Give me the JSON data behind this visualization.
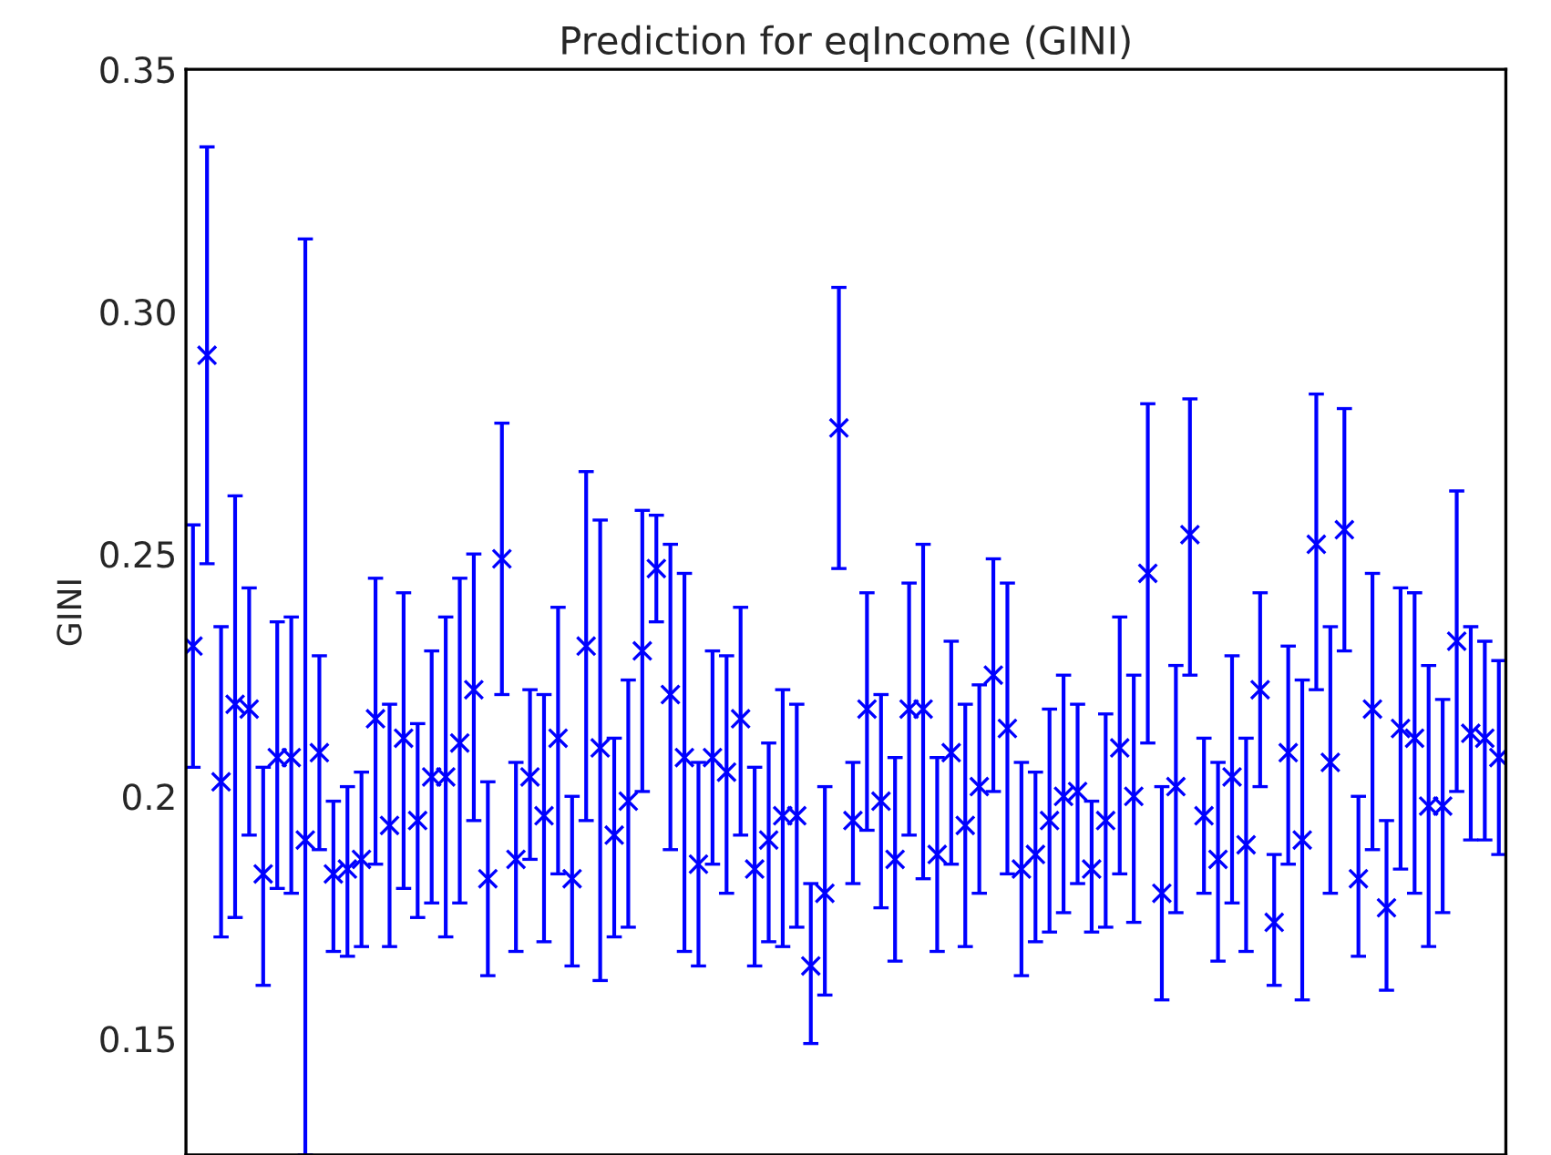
{
  "chart_data": {
    "type": "scatter",
    "title": "Prediction for eqIncome (GINI)",
    "ylabel": "GINI",
    "categories": [
      null,
      null,
      null,
      null,
      null,
      null,
      null,
      null,
      null,
      null,
      null,
      null,
      null,
      null,
      null,
      null,
      null,
      null,
      null,
      null,
      null,
      null,
      null,
      null,
      null,
      null,
      null,
      null,
      null,
      null,
      null,
      null,
      null,
      null,
      null,
      null,
      null,
      null,
      null,
      null,
      null,
      null,
      null,
      null,
      null,
      null,
      null,
      null,
      null,
      null,
      null,
      null,
      null,
      null,
      null,
      null,
      null,
      null,
      null,
      null,
      null,
      null,
      null,
      null,
      null,
      null,
      null,
      null,
      null,
      null,
      null,
      null,
      null,
      null,
      null,
      null,
      null,
      null,
      null,
      null,
      null,
      null,
      null,
      null,
      null,
      null,
      null,
      null,
      null,
      null,
      null,
      null,
      null,
      null
    ],
    "values": [
      0.231,
      0.291,
      0.203,
      0.219,
      0.218,
      0.184,
      0.208,
      0.208,
      0.191,
      0.209,
      0.184,
      0.185,
      0.187,
      0.216,
      0.194,
      0.212,
      0.195,
      0.204,
      0.204,
      0.211,
      0.222,
      0.183,
      0.249,
      0.187,
      0.204,
      0.196,
      0.212,
      0.183,
      0.231,
      0.21,
      0.192,
      0.199,
      0.23,
      0.247,
      0.221,
      0.208,
      0.186,
      0.208,
      0.205,
      0.216,
      0.185,
      0.191,
      0.196,
      0.196,
      0.165,
      0.18,
      0.276,
      0.195,
      0.218,
      0.199,
      0.187,
      0.218,
      0.218,
      0.188,
      0.209,
      0.194,
      0.202,
      0.225,
      0.214,
      0.185,
      0.188,
      0.195,
      0.2,
      0.201,
      0.185,
      0.195,
      0.21,
      0.2,
      0.246,
      0.18,
      0.202,
      0.254,
      0.196,
      0.187,
      0.204,
      0.19,
      0.222,
      0.174,
      0.209,
      0.191,
      0.252,
      0.207,
      0.255,
      0.183,
      0.218,
      0.177,
      0.214,
      0.212,
      0.198,
      0.198,
      0.232,
      0.213,
      0.212,
      0.208
    ],
    "errors": [
      [
        0.206,
        0.256
      ],
      [
        0.248,
        0.334
      ],
      [
        0.171,
        0.235
      ],
      [
        0.175,
        0.262
      ],
      [
        0.192,
        0.243
      ],
      [
        0.161,
        0.206
      ],
      [
        0.181,
        0.236
      ],
      [
        0.18,
        0.237
      ],
      [
        0.126,
        0.315
      ],
      [
        0.189,
        0.229
      ],
      [
        0.168,
        0.199
      ],
      [
        0.167,
        0.202
      ],
      [
        0.169,
        0.205
      ],
      [
        0.186,
        0.245
      ],
      [
        0.169,
        0.219
      ],
      [
        0.181,
        0.242
      ],
      [
        0.175,
        0.215
      ],
      [
        0.178,
        0.23
      ],
      [
        0.171,
        0.237
      ],
      [
        0.178,
        0.245
      ],
      [
        0.195,
        0.25
      ],
      [
        0.163,
        0.203
      ],
      [
        0.221,
        0.277
      ],
      [
        0.168,
        0.207
      ],
      [
        0.187,
        0.222
      ],
      [
        0.17,
        0.221
      ],
      [
        0.184,
        0.239
      ],
      [
        0.165,
        0.2
      ],
      [
        0.195,
        0.267
      ],
      [
        0.162,
        0.257
      ],
      [
        0.171,
        0.212
      ],
      [
        0.173,
        0.224
      ],
      [
        0.201,
        0.259
      ],
      [
        0.236,
        0.258
      ],
      [
        0.189,
        0.252
      ],
      [
        0.168,
        0.246
      ],
      [
        0.165,
        0.207
      ],
      [
        0.186,
        0.23
      ],
      [
        0.18,
        0.229
      ],
      [
        0.192,
        0.239
      ],
      [
        0.165,
        0.206
      ],
      [
        0.17,
        0.211
      ],
      [
        0.169,
        0.222
      ],
      [
        0.173,
        0.219
      ],
      [
        0.149,
        0.182
      ],
      [
        0.159,
        0.202
      ],
      [
        0.247,
        0.305
      ],
      [
        0.182,
        0.207
      ],
      [
        0.193,
        0.242
      ],
      [
        0.177,
        0.221
      ],
      [
        0.166,
        0.208
      ],
      [
        0.192,
        0.244
      ],
      [
        0.183,
        0.252
      ],
      [
        0.168,
        0.208
      ],
      [
        0.186,
        0.232
      ],
      [
        0.169,
        0.219
      ],
      [
        0.18,
        0.223
      ],
      [
        0.201,
        0.249
      ],
      [
        0.184,
        0.244
      ],
      [
        0.163,
        0.207
      ],
      [
        0.17,
        0.205
      ],
      [
        0.172,
        0.218
      ],
      [
        0.176,
        0.225
      ],
      [
        0.182,
        0.219
      ],
      [
        0.172,
        0.199
      ],
      [
        0.173,
        0.217
      ],
      [
        0.184,
        0.237
      ],
      [
        0.174,
        0.225
      ],
      [
        0.211,
        0.281
      ],
      [
        0.158,
        0.202
      ],
      [
        0.176,
        0.227
      ],
      [
        0.225,
        0.282
      ],
      [
        0.18,
        0.212
      ],
      [
        0.166,
        0.207
      ],
      [
        0.178,
        0.229
      ],
      [
        0.168,
        0.212
      ],
      [
        0.202,
        0.242
      ],
      [
        0.161,
        0.188
      ],
      [
        0.186,
        0.231
      ],
      [
        0.158,
        0.224
      ],
      [
        0.222,
        0.283
      ],
      [
        0.18,
        0.235
      ],
      [
        0.23,
        0.28
      ],
      [
        0.167,
        0.2
      ],
      [
        0.189,
        0.246
      ],
      [
        0.16,
        0.195
      ],
      [
        0.185,
        0.243
      ],
      [
        0.18,
        0.242
      ],
      [
        0.169,
        0.227
      ],
      [
        0.176,
        0.22
      ],
      [
        0.201,
        0.263
      ],
      [
        0.191,
        0.235
      ],
      [
        0.191,
        0.232
      ],
      [
        0.188,
        0.228
      ]
    ],
    "color": "#0000ff",
    "marker": "cross",
    "grid": false,
    "ylim": [
      0.126,
      0.35
    ],
    "yticks": [
      0.15,
      0.2,
      {
        "value": 0.25,
        "label": "0.25"
      },
      {
        "value": 0.3,
        "label": "0.30"
      },
      0.35
    ]
  }
}
